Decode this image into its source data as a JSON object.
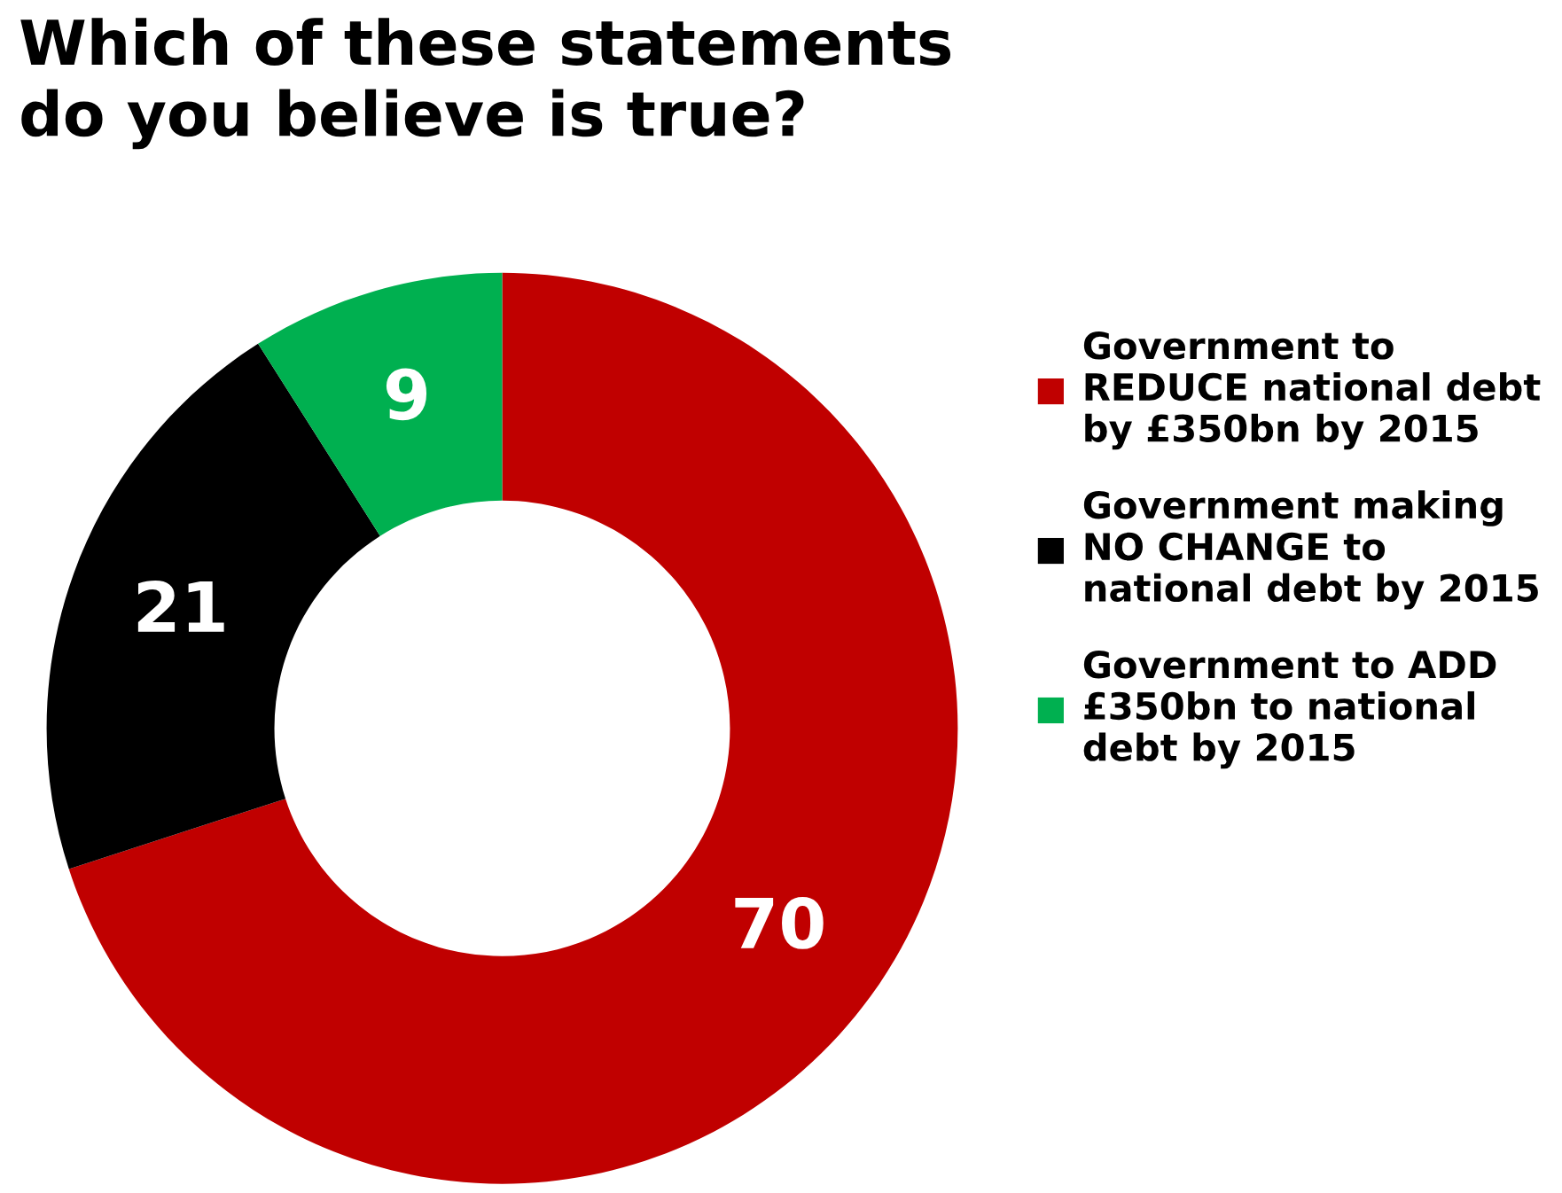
{
  "chart_data": {
    "type": "donut",
    "title": "Which of these statements\ndo you believe is true?",
    "categories": [
      "Government to\nREDUCE national debt\nby £350bn by 2015",
      "Government making\nNO CHANGE to\nnational debt by 2015",
      "Government to ADD\n£350bn to national\ndebt by 2015"
    ],
    "values": [
      70,
      21,
      9
    ],
    "colors": [
      "#c00000",
      "#000000",
      "#00b050"
    ],
    "data_labels": true,
    "legend": "right"
  }
}
